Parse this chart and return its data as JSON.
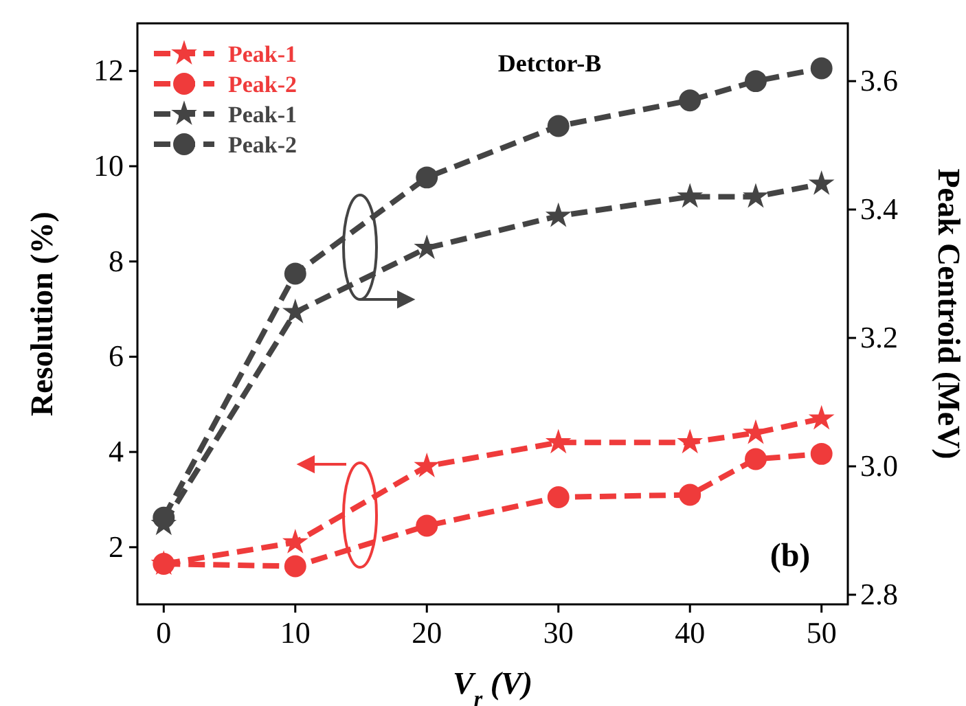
{
  "chart_data": {
    "type": "line",
    "x": [
      0,
      10,
      20,
      30,
      40,
      45,
      50
    ],
    "series": [
      {
        "name": "Peak-1",
        "color": "#ef3b3b",
        "marker": "star",
        "values": [
          1.65,
          2.1,
          3.7,
          4.2,
          4.2,
          4.4,
          4.7
        ]
      },
      {
        "name": "Peak-2",
        "color": "#ef3b3b",
        "marker": "circle",
        "values": [
          1.65,
          1.6,
          2.45,
          3.05,
          3.1,
          3.85,
          3.96
        ]
      },
      {
        "name": "Peak-1",
        "color": "#444444",
        "marker": "star",
        "axis": "y2",
        "values": [
          2.91,
          3.24,
          3.34,
          3.39,
          3.42,
          3.42,
          3.44
        ]
      },
      {
        "name": "Peak-2",
        "color": "#444444",
        "marker": "circle",
        "axis": "y2",
        "values": [
          2.92,
          3.3,
          3.45,
          3.53,
          3.57,
          3.6,
          3.62
        ]
      }
    ],
    "xlabel": "V$_{r}$ (V)",
    "ylabel": "Resolution (%)",
    "y2label": "Peak Centroid (MeV)",
    "xlim": [
      -2,
      52
    ],
    "xticks": [
      0,
      10,
      20,
      30,
      40,
      50
    ],
    "ylim": [
      0.8,
      13
    ],
    "yticks": [
      2,
      4,
      6,
      8,
      10,
      12
    ],
    "y2lim": [
      2.785,
      3.69
    ],
    "y2ticks": [
      2.8,
      {
        "value": 3,
        "label": "3.0"
      },
      3.2,
      3.4,
      3.6
    ],
    "line_style": "dashed",
    "legend": "top left",
    "grid": false,
    "annotations": [
      "Detctor-B",
      "(b)"
    ]
  }
}
